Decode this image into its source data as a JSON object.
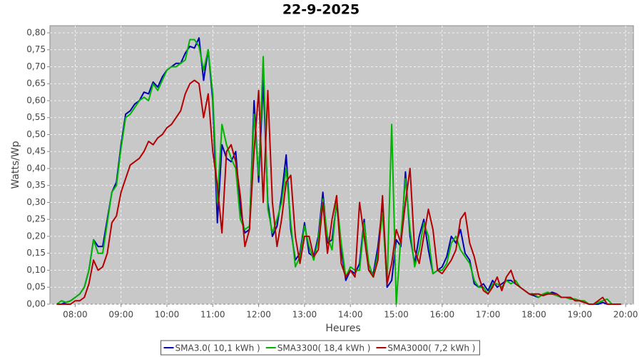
{
  "chart_data": {
    "type": "line",
    "title": "22-9-2025",
    "x_label": "Heures",
    "y_label": "Watts/Wp",
    "x": [
      7.6,
      7.7,
      7.8,
      7.9,
      8,
      8.1,
      8.2,
      8.3,
      8.4,
      8.5,
      8.6,
      8.7,
      8.8,
      8.9,
      9,
      9.1,
      9.2,
      9.3,
      9.4,
      9.5,
      9.6,
      9.7,
      9.8,
      9.9,
      10,
      10.1,
      10.2,
      10.3,
      10.4,
      10.5,
      10.6,
      10.7,
      10.8,
      10.9,
      11,
      11.1,
      11.2,
      11.3,
      11.4,
      11.5,
      11.6,
      11.7,
      11.8,
      11.9,
      12,
      12.1,
      12.2,
      12.3,
      12.4,
      12.5,
      12.6,
      12.7,
      12.8,
      12.9,
      13,
      13.1,
      13.2,
      13.3,
      13.4,
      13.5,
      13.6,
      13.7,
      13.8,
      13.9,
      14,
      14.1,
      14.2,
      14.3,
      14.4,
      14.5,
      14.6,
      14.7,
      14.8,
      14.9,
      15,
      15.1,
      15.2,
      15.3,
      15.4,
      15.5,
      15.6,
      15.7,
      15.8,
      15.9,
      16,
      16.1,
      16.2,
      16.3,
      16.4,
      16.5,
      16.6,
      16.7,
      16.8,
      16.9,
      17,
      17.1,
      17.2,
      17.3,
      17.4,
      17.5,
      17.6,
      17.7,
      17.8,
      17.9,
      18,
      18.1,
      18.2,
      18.3,
      18.4,
      18.5,
      18.6,
      18.7,
      18.8,
      18.9,
      19,
      19.1,
      19.2,
      19.3,
      19.4,
      19.5,
      19.6,
      19.7,
      19.8,
      19.9
    ],
    "series": [
      {
        "name": "SMA3.0( 10,1 kWh )",
        "color": "#0000b4",
        "values": [
          0,
          0,
          0.005,
          0.01,
          0.02,
          0.03,
          0.05,
          0.1,
          0.19,
          0.17,
          0.17,
          0.25,
          0.33,
          0.36,
          0.47,
          0.56,
          0.57,
          0.59,
          0.6,
          0.625,
          0.62,
          0.655,
          0.64,
          0.67,
          0.69,
          0.7,
          0.71,
          0.71,
          0.74,
          0.76,
          0.755,
          0.785,
          0.66,
          0.75,
          0.6,
          0.24,
          0.47,
          0.43,
          0.42,
          0.45,
          0.28,
          0.21,
          0.22,
          0.6,
          0.36,
          0.66,
          0.3,
          0.2,
          0.23,
          0.32,
          0.44,
          0.22,
          0.13,
          0.15,
          0.24,
          0.15,
          0.14,
          0.2,
          0.33,
          0.18,
          0.19,
          0.3,
          0.16,
          0.07,
          0.1,
          0.09,
          0.12,
          0.25,
          0.1,
          0.09,
          0.17,
          0.29,
          0.05,
          0.07,
          0.19,
          0.17,
          0.39,
          0.2,
          0.12,
          0.2,
          0.25,
          0.16,
          0.09,
          0.1,
          0.11,
          0.14,
          0.2,
          0.18,
          0.22,
          0.15,
          0.13,
          0.06,
          0.05,
          0.06,
          0.04,
          0.07,
          0.05,
          0.06,
          0.07,
          0.07,
          0.06,
          0.05,
          0.04,
          0.03,
          0.025,
          0.02,
          0.03,
          0.03,
          0.035,
          0.03,
          0.02,
          0.02,
          0.015,
          0.015,
          0.01,
          0.005,
          0,
          0,
          0,
          0.005,
          0,
          0,
          0,
          0
        ]
      },
      {
        "name": "SMA3300( 18,4 kWh )",
        "color": "#00b400",
        "values": [
          0,
          0.01,
          0.005,
          0.01,
          0.02,
          0.03,
          0.05,
          0.1,
          0.19,
          0.15,
          0.15,
          0.24,
          0.33,
          0.35,
          0.46,
          0.55,
          0.56,
          0.58,
          0.6,
          0.61,
          0.6,
          0.65,
          0.63,
          0.66,
          0.69,
          0.7,
          0.7,
          0.71,
          0.72,
          0.78,
          0.78,
          0.76,
          0.69,
          0.75,
          0.62,
          0.3,
          0.53,
          0.47,
          0.43,
          0.4,
          0.25,
          0.22,
          0.23,
          0.56,
          0.38,
          0.73,
          0.28,
          0.21,
          0.25,
          0.3,
          0.4,
          0.24,
          0.11,
          0.14,
          0.23,
          0.17,
          0.13,
          0.19,
          0.31,
          0.2,
          0.16,
          0.31,
          0.18,
          0.08,
          0.11,
          0.1,
          0.1,
          0.24,
          0.12,
          0.08,
          0.15,
          0.27,
          0.06,
          0.53,
          0,
          0.2,
          0.37,
          0.22,
          0.11,
          0.16,
          0.24,
          0.2,
          0.09,
          0.1,
          0.1,
          0.12,
          0.18,
          0.2,
          0.16,
          0.14,
          0.12,
          0.07,
          0.05,
          0.05,
          0.03,
          0.06,
          0.06,
          0.05,
          0.07,
          0.06,
          0.07,
          0.05,
          0.04,
          0.03,
          0.03,
          0.02,
          0.03,
          0.035,
          0.03,
          0.025,
          0.02,
          0.02,
          0.015,
          0.015,
          0.01,
          0.01,
          0,
          0,
          0.005,
          0.01,
          0.015,
          0,
          0,
          0
        ]
      },
      {
        "name": "SMA3000( 7,2 kWh )",
        "color": "#b40000",
        "values": [
          0,
          0,
          0,
          0,
          0.01,
          0.01,
          0.02,
          0.06,
          0.13,
          0.1,
          0.11,
          0.15,
          0.24,
          0.26,
          0.33,
          0.37,
          0.41,
          0.42,
          0.43,
          0.45,
          0.48,
          0.47,
          0.49,
          0.5,
          0.52,
          0.53,
          0.55,
          0.57,
          0.62,
          0.65,
          0.66,
          0.65,
          0.55,
          0.62,
          0.45,
          0.35,
          0.21,
          0.45,
          0.47,
          0.42,
          0.32,
          0.17,
          0.22,
          0.45,
          0.63,
          0.3,
          0.63,
          0.3,
          0.17,
          0.25,
          0.36,
          0.38,
          0.2,
          0.12,
          0.2,
          0.2,
          0.14,
          0.16,
          0.3,
          0.15,
          0.25,
          0.32,
          0.12,
          0.08,
          0.1,
          0.08,
          0.3,
          0.2,
          0.1,
          0.08,
          0.13,
          0.32,
          0.06,
          0.12,
          0.22,
          0.18,
          0.3,
          0.4,
          0.16,
          0.12,
          0.2,
          0.28,
          0.22,
          0.1,
          0.09,
          0.11,
          0.13,
          0.16,
          0.25,
          0.27,
          0.18,
          0.14,
          0.08,
          0.04,
          0.03,
          0.05,
          0.08,
          0.04,
          0.08,
          0.1,
          0.06,
          0.05,
          0.04,
          0.03,
          0.03,
          0.03,
          0.025,
          0.03,
          0.03,
          0.03,
          0.02,
          0.02,
          0.02,
          0.01,
          0.01,
          0.005,
          0,
          0,
          0.01,
          0.02,
          0,
          0,
          0,
          0
        ]
      }
    ],
    "xlim": [
      7.45,
      20.17
    ],
    "xticks": [
      {
        "value": 8,
        "label": "08:00"
      },
      {
        "value": 9,
        "label": "09:00"
      },
      {
        "value": 10,
        "label": "10:00"
      },
      {
        "value": 11,
        "label": "11:00"
      },
      {
        "value": 12,
        "label": "12:00"
      },
      {
        "value": 13,
        "label": "13:00"
      },
      {
        "value": 14,
        "label": "14:00"
      },
      {
        "value": 15,
        "label": "15:00"
      },
      {
        "value": 16,
        "label": "16:00"
      },
      {
        "value": 17,
        "label": "17:00"
      },
      {
        "value": 18,
        "label": "18:00"
      },
      {
        "value": 19,
        "label": "19:00"
      },
      {
        "value": 20,
        "label": "20:00"
      }
    ],
    "ylim": [
      0,
      0.821
    ],
    "yticks": [
      {
        "value": 0,
        "label": "0,00"
      },
      {
        "value": 0.05,
        "label": "0,05"
      },
      {
        "value": 0.1,
        "label": "0,10"
      },
      {
        "value": 0.15,
        "label": "0,15"
      },
      {
        "value": 0.2,
        "label": "0,20"
      },
      {
        "value": 0.25,
        "label": "0,25"
      },
      {
        "value": 0.3,
        "label": "0,30"
      },
      {
        "value": 0.35,
        "label": "0,35"
      },
      {
        "value": 0.4,
        "label": "0,40"
      },
      {
        "value": 0.45,
        "label": "0,45"
      },
      {
        "value": 0.5,
        "label": "0,50"
      },
      {
        "value": 0.55,
        "label": "0,55"
      },
      {
        "value": 0.6,
        "label": "0,60"
      },
      {
        "value": 0.65,
        "label": "0,65"
      },
      {
        "value": 0.7,
        "label": "0,70"
      },
      {
        "value": 0.75,
        "label": "0,75"
      },
      {
        "value": 0.8,
        "label": "0,80"
      }
    ],
    "grid": true,
    "legend": "bottom"
  }
}
